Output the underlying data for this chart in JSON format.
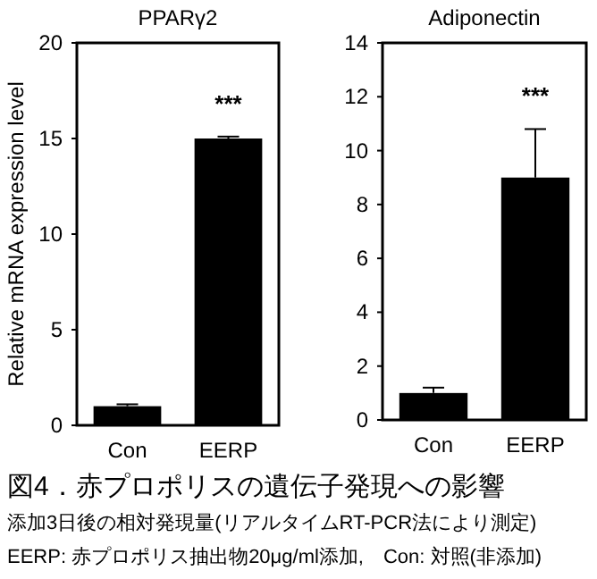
{
  "chart_data": [
    {
      "type": "bar",
      "title": "PPARγ2",
      "ylabel": "Relative mRNA expression level",
      "categories": [
        "Con",
        "EERP"
      ],
      "values": [
        1.0,
        15.0
      ],
      "errors": [
        0.1,
        0.1
      ],
      "color": "#000000",
      "ylim": [
        0,
        20
      ],
      "yticks": [
        0,
        5,
        10,
        15,
        20
      ],
      "annotations": [
        "***"
      ]
    },
    {
      "type": "bar",
      "title": "Adiponectin",
      "categories": [
        "Con",
        "EERP"
      ],
      "values": [
        1.0,
        9.0
      ],
      "errors": [
        0.2,
        1.8
      ],
      "color": "#000000",
      "ylim": [
        0,
        14
      ],
      "yticks": [
        0,
        2,
        4,
        6,
        8,
        10,
        12,
        14
      ],
      "annotations": [
        "***",
        "図4．赤プロポリスの遺伝子発現への影響",
        "添加3日後の相対発現量(リアルタイムRT-PCR法により測定)",
        "EERP: 赤プロポリス抽出物20μg/ml添加,　Con: 対照(非添加)"
      ]
    }
  ]
}
